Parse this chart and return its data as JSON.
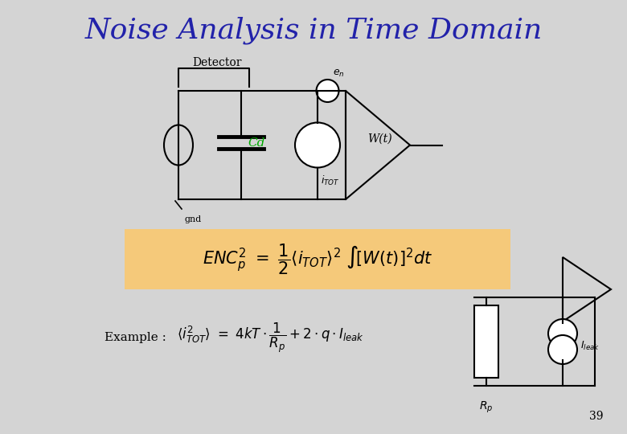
{
  "title": "Noise Analysis in Time Domain",
  "title_color": "#2222AA",
  "title_fontsize": 26,
  "bg_color": "#D4D4D4",
  "formula_bg": "#F5C97A",
  "page_number": "39",
  "label_detector": "Detector",
  "label_Cd": "Cd",
  "label_Cd_color": "#00AA00",
  "label_en": "e",
  "label_en_sub": "n",
  "label_Wt": "W(t)",
  "label_iTOT": "i",
  "label_iTOT_sub": "TOT",
  "label_gnd": "gnd",
  "label_example": "Example :",
  "formula_main": "ENC_p^2 = \\frac{1}{2} \\langle i_{TOT} \\rangle^2 \\int\\!\\left[W(t)\\right]^2 dt",
  "formula_example": "\\langle i^2_{TOT} \\rangle = 4kT \\cdot \\frac{1}{R_p} + 2 \\cdot q \\cdot I_{leak}",
  "label_Rp": "R_p",
  "label_Ileak": "I_{leak}"
}
